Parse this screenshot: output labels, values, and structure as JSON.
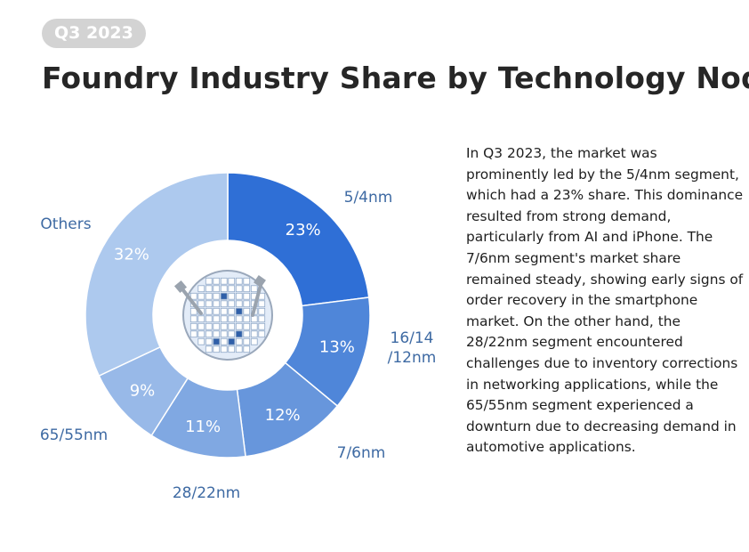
{
  "badge": "Q3 2023",
  "title": "Foundry Industry Share by Technology Node",
  "description": "In Q3 2023, the market was prominently led by the 5/4nm segment, which had a 23% share. This dominance resulted from strong demand, particularly from AI and iPhone. The 7/6nm segment's market share remained steady, showing early signs of order recovery in the smartphone market. On the other hand, the 28/22nm segment encountered challenges due to inventory corrections in networking applications, while the 65/55nm segment experienced a downturn due to decreasing demand in automotive applications.",
  "chart_data": {
    "type": "pie",
    "variant": "donut",
    "title": "Foundry Industry Share by Technology Node",
    "categories": [
      "5/4nm",
      "16/14/12nm",
      "7/6nm",
      "28/22nm",
      "65/55nm",
      "Others"
    ],
    "category_lines": [
      [
        "5/4nm"
      ],
      [
        "16/14",
        "/12nm"
      ],
      [
        "7/6nm"
      ],
      [
        "28/22nm"
      ],
      [
        "65/55nm"
      ],
      [
        "Others"
      ]
    ],
    "values": [
      23,
      13,
      12,
      11,
      9,
      32
    ],
    "value_labels": [
      "23%",
      "13%",
      "12%",
      "11%",
      "9%",
      "32%"
    ],
    "colors": [
      "#2f6fd6",
      "#4f86d9",
      "#6796dc",
      "#80a8e2",
      "#98b9e8",
      "#adc9ee"
    ],
    "center_icon": "wafer-icon"
  }
}
